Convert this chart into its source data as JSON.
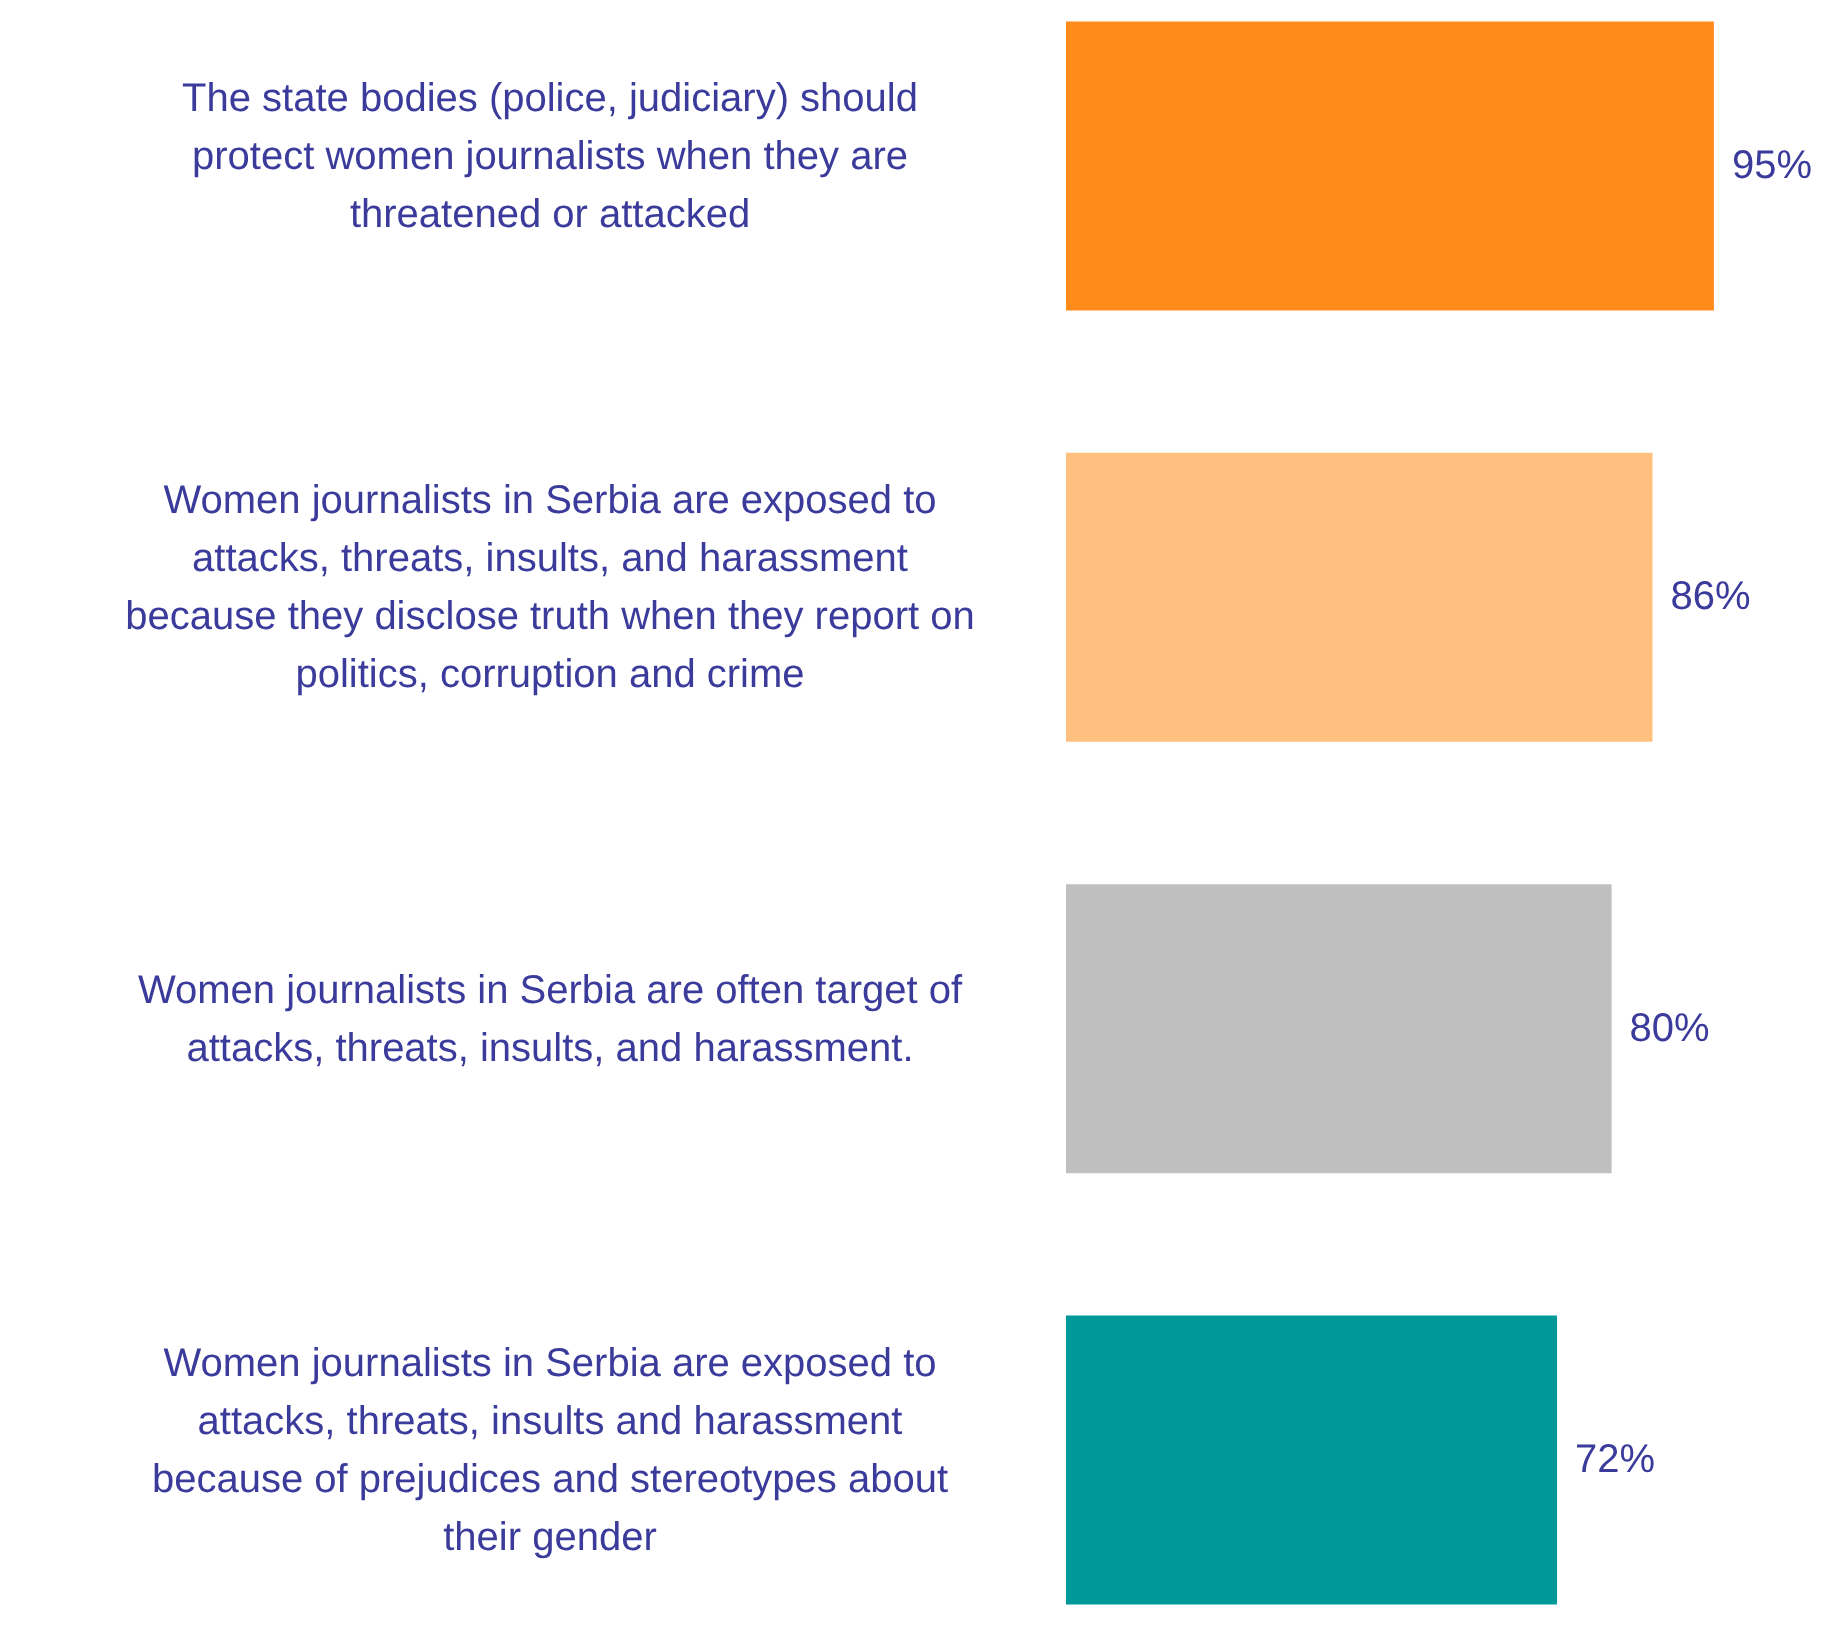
{
  "chart_data": {
    "type": "bar",
    "orientation": "horizontal",
    "categories": [
      "The state bodies (police, judiciary) should protect women journalists when they are threatened or attacked",
      "Women journalists in Serbia are exposed to attacks, threats, insults, and harassment because they disclose truth when they report on politics, corruption and crime",
      "Women journalists in Serbia are often target of attacks, threats, insults, and harassment.",
      "Women journalists in Serbia are exposed to attacks, threats, insults and harassment because of prejudices and stereotypes about their gender"
    ],
    "values": [
      95,
      86,
      80,
      72
    ],
    "colors": [
      "#ff8c1a",
      "#ffbf7f",
      "#bfbfbf",
      "#009999"
    ],
    "value_labels": [
      "95%",
      "86%",
      "80%",
      "72%"
    ]
  }
}
